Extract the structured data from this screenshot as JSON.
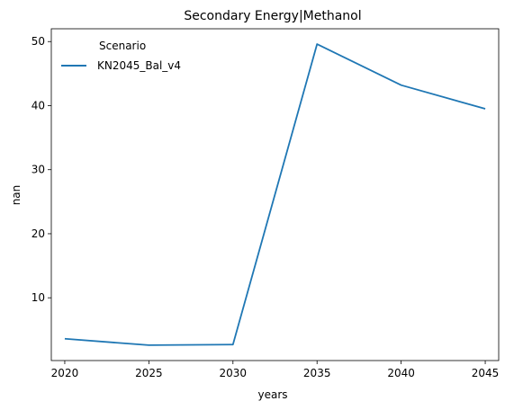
{
  "chart_data": {
    "type": "line",
    "title": "Secondary Energy|Methanol",
    "xlabel": "years",
    "ylabel": "nan",
    "x": [
      2020,
      2025,
      2030,
      2035,
      2040,
      2045
    ],
    "series": [
      {
        "name": "KN2045_Bal_v4",
        "color": "#1f77b4",
        "values": [
          3.6,
          2.6,
          2.7,
          49.6,
          43.2,
          39.5
        ]
      }
    ],
    "xticks": [
      2020,
      2025,
      2030,
      2035,
      2040,
      2045
    ],
    "yticks": [
      10,
      20,
      30,
      40,
      50
    ],
    "xlim": [
      2019.2,
      2045.8
    ],
    "ylim": [
      0.2,
      52
    ],
    "grid": false,
    "legend": {
      "title": "Scenario",
      "placement": "top-left"
    }
  }
}
